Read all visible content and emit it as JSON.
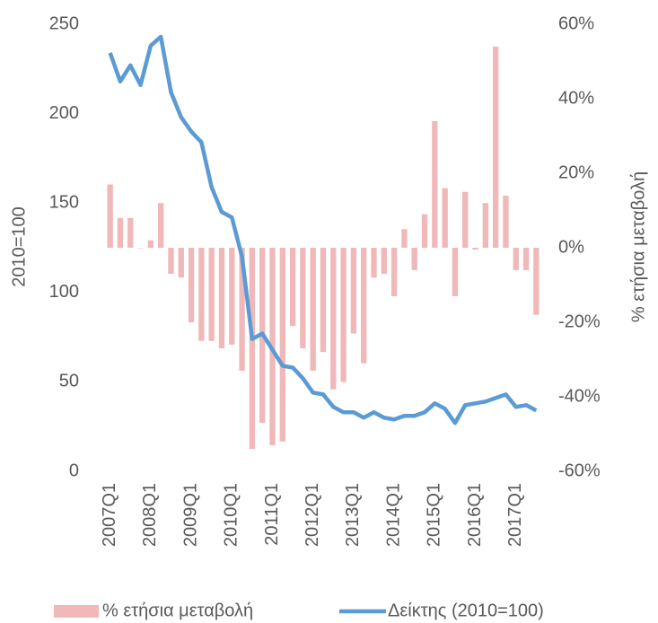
{
  "chart_data": {
    "type": "bar",
    "categories": [
      "2007Q1",
      null,
      null,
      null,
      "2008Q1",
      null,
      null,
      null,
      "2009Q1",
      null,
      null,
      null,
      "2010Q1",
      null,
      null,
      null,
      "2011Q1",
      null,
      null,
      null,
      "2012Q1",
      null,
      null,
      null,
      "2013Q1",
      null,
      null,
      null,
      "2014Q1",
      null,
      null,
      null,
      "2015Q1",
      null,
      null,
      null,
      "2016Q1",
      null,
      null,
      null,
      "2017Q1",
      null,
      null
    ],
    "y_label": "2010=100",
    "y2_label": "% ετήσια μεταβολή",
    "ylim": [
      0,
      250
    ],
    "yticks": [
      0,
      50,
      100,
      150,
      200,
      250
    ],
    "y2lim": [
      -60,
      60
    ],
    "y2ticks": [
      {
        "value": -60,
        "label": "-60%"
      },
      {
        "value": -40,
        "label": "-40%"
      },
      {
        "value": -20,
        "label": "-20%"
      },
      {
        "value": 0,
        "label": "0%"
      },
      {
        "value": 20,
        "label": "20%"
      },
      {
        "value": 40,
        "label": "40%"
      },
      {
        "value": 60,
        "label": "60%"
      }
    ],
    "legend": "bottom",
    "series": [
      {
        "name": "% ετήσια μεταβολή",
        "type": "bar",
        "axis": "y2",
        "color": "#f0b8b8",
        "values": [
          17,
          8,
          8,
          0,
          2,
          12,
          -7,
          -8,
          -20,
          -25,
          -25,
          -27,
          -26,
          -33,
          -54,
          -47,
          -53,
          -52,
          -21,
          -27,
          -33,
          -28,
          -38,
          -36,
          -23,
          -31,
          -8,
          -7,
          -13,
          5,
          -6,
          9,
          34,
          16,
          -13,
          15,
          -0.5,
          12,
          54,
          14,
          -6,
          -6,
          -18
        ]
      },
      {
        "name": "Δείκτης (2010=100)",
        "type": "line",
        "color": "#5b9bd5",
        "values": [
          234,
          218,
          227,
          216,
          238,
          243,
          212,
          198,
          190,
          184,
          159,
          145,
          142,
          120,
          74,
          77,
          68,
          59,
          58,
          52,
          44,
          43,
          36,
          33,
          33,
          30,
          33,
          30,
          29,
          31,
          31,
          33,
          38,
          35,
          27,
          37,
          38,
          39,
          41,
          43,
          36,
          37,
          34
        ]
      }
    ]
  }
}
